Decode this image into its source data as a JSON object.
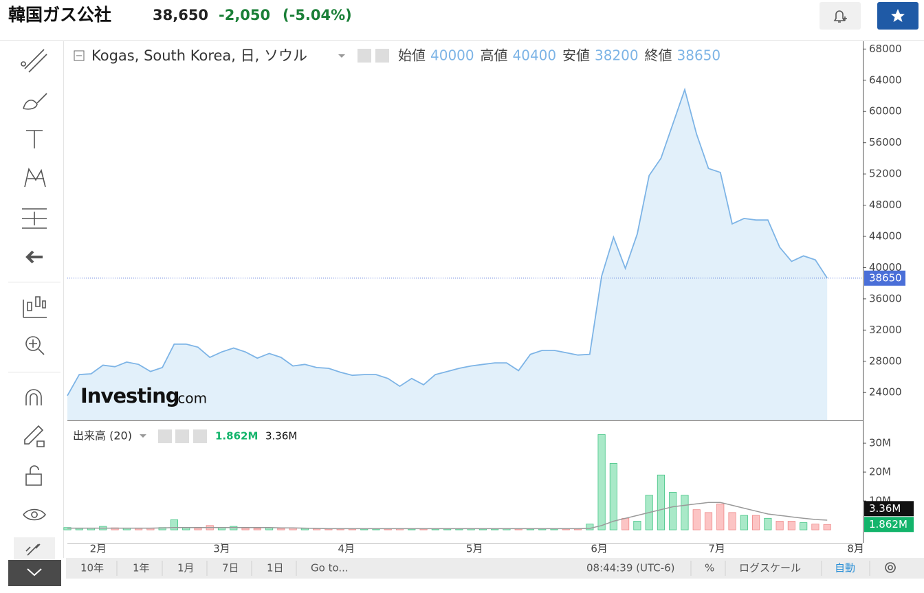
{
  "header": {
    "title": "韓国ガス公社",
    "price": "38,650",
    "change": "-2,050",
    "change_pct": "(-5.04%)"
  },
  "watermark": {
    "brand": "Investing",
    "suffix": ".com"
  },
  "bottom_bar": {
    "ranges": [
      "10年",
      "1年",
      "1月",
      "7日",
      "1日",
      "Go to..."
    ],
    "time": "08:44:39 (UTC-6)",
    "percent": "%",
    "log_scale": "ログスケール",
    "auto": "自動"
  },
  "chart_data": [
    {
      "type": "area",
      "title": "Kogas, South Korea, 日, ソウル",
      "color": "#7db4e6",
      "fill": "#e2f0fa",
      "last_color": "#4a6fd8",
      "ohlc": [
        {
          "name": "始値",
          "value": 40000
        },
        {
          "name": "高値",
          "value": 40400
        },
        {
          "name": "安値",
          "value": 38200
        },
        {
          "name": "終値",
          "value": 38650
        }
      ],
      "values": [
        23600,
        26300,
        26400,
        27500,
        27300,
        27900,
        27600,
        26700,
        27200,
        30200,
        30200,
        29800,
        28500,
        29200,
        29700,
        29200,
        28400,
        29000,
        28500,
        27400,
        27600,
        27200,
        27100,
        26600,
        26200,
        26300,
        26300,
        25800,
        24800,
        25800,
        25000,
        26300,
        26700,
        27100,
        27400,
        27600,
        27800,
        27800,
        26800,
        28900,
        29400,
        29400,
        29100,
        28800,
        28900,
        38900,
        43900,
        39900,
        44300,
        51800,
        54000,
        58400,
        62800,
        57100,
        52700,
        52200,
        45600,
        46300,
        46100,
        46100,
        42600,
        40800,
        41500,
        41000,
        38650
      ],
      "xlim": [
        0,
        67
      ],
      "ylim": [
        20500,
        69000
      ],
      "yticks": [
        24000,
        28000,
        32000,
        36000,
        40000,
        44000,
        48000,
        52000,
        56000,
        60000,
        64000,
        68000
      ]
    },
    {
      "type": "volume",
      "title": "出来高 (20)",
      "up_color": "#a9e9c8",
      "up_edge": "#45c486",
      "down_color": "#fcc4c4",
      "down_edge": "#ee8a8a",
      "ma_color": "#999999",
      "up_text": "#13b46b",
      "series": [
        {
          "values": [
            800000,
            500000,
            600000,
            1200000,
            700000,
            600000,
            500000,
            600000,
            800000,
            3500000,
            700000,
            600000,
            1500000,
            800000,
            1200000,
            600000,
            500000,
            700000,
            500000,
            600000,
            500000,
            400000,
            300000,
            300000,
            300000,
            300000,
            300000,
            300000,
            400000,
            300000,
            300000,
            300000,
            300000,
            300000,
            400000,
            300000,
            300000,
            400000,
            300000,
            300000,
            300000,
            300000,
            300000,
            300000,
            2000000,
            33000000,
            23000000,
            4000000,
            3000000,
            12000000,
            19000000,
            13000000,
            12000000,
            7000000,
            6000000,
            9000000,
            6000000,
            5000000,
            5000000,
            4000000,
            3000000,
            3000000,
            2500000,
            2000000,
            1862000
          ]
        },
        {
          "values": [
            600000,
            600000,
            600000,
            600000,
            600000,
            600000,
            600000,
            600000,
            700000,
            800000,
            800000,
            800000,
            800000,
            800000,
            800000,
            800000,
            800000,
            800000,
            700000,
            700000,
            600000,
            500000,
            400000,
            400000,
            400000,
            400000,
            400000,
            400000,
            400000,
            400000,
            400000,
            400000,
            400000,
            400000,
            400000,
            400000,
            400000,
            400000,
            400000,
            400000,
            400000,
            400000,
            400000,
            400000,
            500000,
            1500000,
            3000000,
            4000000,
            5000000,
            6000000,
            7000000,
            8000000,
            8500000,
            9000000,
            9500000,
            9500000,
            8500000,
            7500000,
            6500000,
            5500000,
            5000000,
            4500000,
            4000000,
            3600000,
            3360000
          ]
        }
      ],
      "last": [
        {
          "value": 1862000,
          "label": "1.862M"
        },
        {
          "value": 3360000,
          "label": "3.36M"
        }
      ],
      "xlim": [
        0,
        67
      ],
      "ylim": [
        -4500000,
        38100000
      ],
      "yticks": [
        {
          "value": 10000000,
          "label": "10M"
        },
        {
          "value": 20000000,
          "label": "20M"
        },
        {
          "value": 30000000,
          "label": "30M"
        }
      ],
      "xticks": [
        {
          "value": 2.6,
          "label": "2月"
        },
        {
          "value": 13,
          "label": "3月"
        },
        {
          "value": 23.5,
          "label": "4月"
        },
        {
          "value": 34.3,
          "label": "5月"
        },
        {
          "value": 44.8,
          "label": "6月"
        },
        {
          "value": 54.7,
          "label": "7月"
        },
        {
          "value": 66.4,
          "label": "8月"
        }
      ]
    }
  ]
}
